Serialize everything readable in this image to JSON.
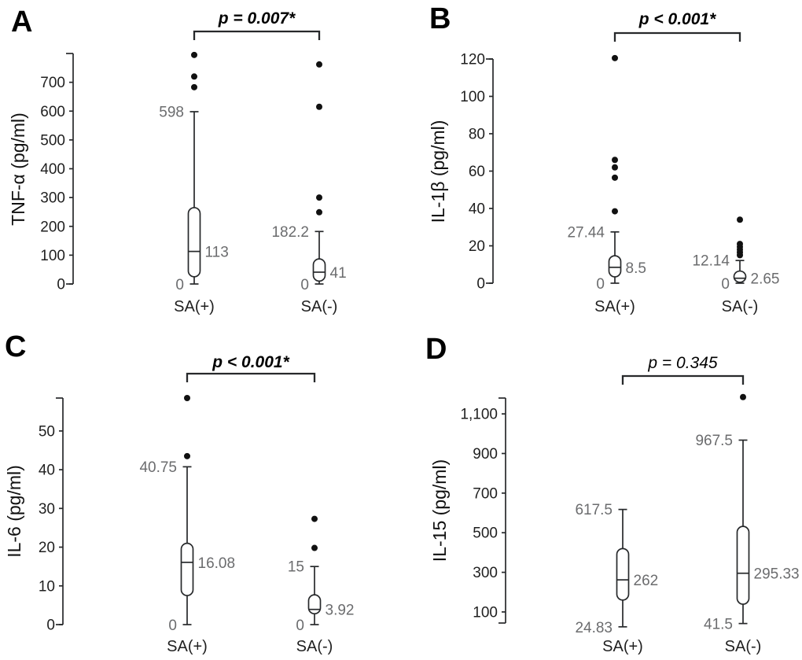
{
  "figure": {
    "background": "#ffffff",
    "line_color": "#27292b",
    "annotation_color": "#6b6c6e",
    "text_color": "#1f1f1f"
  },
  "chart_data": [
    {
      "type": "box",
      "panel_label": "A",
      "p_value": "p = 0.007*",
      "significant": true,
      "ylabel": "TNF-α (pg/ml)",
      "axis_range": [
        0,
        800
      ],
      "y_ticks": [
        0,
        100,
        200,
        300,
        400,
        500,
        600,
        700
      ],
      "y_tick_labels": [
        "0",
        "100",
        "200",
        "300",
        "400",
        "500",
        "600",
        "700"
      ],
      "categories": [
        "SA(+)",
        "SA(-)"
      ],
      "series": [
        {
          "name": "SA(+)",
          "whisker_low": 0,
          "q1": 25,
          "median": 113,
          "q3": 265,
          "whisker_high": 598,
          "outliers": [
            795,
            720,
            683
          ],
          "labels": {
            "whisker_high": "598",
            "median": "113",
            "whisker_low": "0"
          }
        },
        {
          "name": "SA(-)",
          "whisker_low": 0,
          "q1": 10,
          "median": 41,
          "q3": 87,
          "whisker_high": 182.2,
          "outliers": [
            762,
            615,
            300,
            249
          ],
          "labels": {
            "whisker_high": "182.2",
            "median": "41",
            "whisker_low": "0"
          }
        }
      ]
    },
    {
      "type": "box",
      "panel_label": "B",
      "p_value": "p < 0.001*",
      "significant": true,
      "ylabel": "IL-1β (pg/ml)",
      "axis_range": [
        0,
        120
      ],
      "y_ticks": [
        0,
        20,
        40,
        60,
        80,
        100,
        120
      ],
      "y_tick_labels": [
        "0",
        "20",
        "40",
        "60",
        "80",
        "100",
        "120"
      ],
      "categories": [
        "SA(+)",
        "SA(-)"
      ],
      "series": [
        {
          "name": "SA(+)",
          "whisker_low": 0,
          "q1": 3.4,
          "median": 8.5,
          "q3": 14.7,
          "whisker_high": 27.44,
          "outliers": [
            120.5,
            66,
            62,
            56.5,
            38.5
          ],
          "labels": {
            "whisker_high": "27.44",
            "median": "8.5",
            "whisker_low": "0"
          }
        },
        {
          "name": "SA(-)",
          "whisker_low": 0,
          "q1": 0.5,
          "median": 2.65,
          "q3": 6.5,
          "whisker_high": 12.14,
          "outliers": [
            34,
            21,
            19.5,
            18,
            16.5,
            15
          ],
          "labels": {
            "whisker_high": "12.14",
            "median": "2.65",
            "whisker_low": "0"
          }
        }
      ]
    },
    {
      "type": "box",
      "panel_label": "C",
      "p_value": "p < 0.001*",
      "significant": true,
      "ylabel": "IL-6 (pg/ml)",
      "axis_range": [
        0,
        58.5
      ],
      "y_ticks": [
        0,
        10,
        20,
        30,
        40,
        50
      ],
      "y_tick_labels": [
        "0",
        "10",
        "20",
        "30",
        "40",
        "50"
      ],
      "categories": [
        "SA(+)",
        "SA(-)"
      ],
      "series": [
        {
          "name": "SA(+)",
          "whisker_low": 0,
          "q1": 7.5,
          "median": 16.08,
          "q3": 21,
          "whisker_high": 40.75,
          "outliers": [
            58.5,
            43.5
          ],
          "labels": {
            "whisker_high": "40.75",
            "median": "16.08",
            "whisker_low": "0"
          }
        },
        {
          "name": "SA(-)",
          "whisker_low": 0,
          "q1": 2.8,
          "median": 3.92,
          "q3": 7.7,
          "whisker_high": 15,
          "outliers": [
            27.3,
            19.8
          ],
          "labels": {
            "whisker_high": "15",
            "median": "3.92",
            "whisker_low": "0"
          }
        }
      ]
    },
    {
      "type": "box",
      "panel_label": "D",
      "p_value": "p = 0.345",
      "significant": false,
      "ylabel": "IL-15 (pg/ml)",
      "axis_range": [
        44,
        1180
      ],
      "y_ticks": [
        100,
        300,
        500,
        700,
        900,
        1100
      ],
      "y_tick_labels": [
        "100",
        "300",
        "500",
        "700",
        "900",
        "1,100"
      ],
      "categories": [
        "SA(+)",
        "SA(-)"
      ],
      "series": [
        {
          "name": "SA(+)",
          "whisker_low": 24.83,
          "q1": 160,
          "median": 262,
          "q3": 420,
          "whisker_high": 617.5,
          "outliers": [],
          "labels": {
            "whisker_high": "617.5",
            "median": "262",
            "whisker_low": "24.83"
          }
        },
        {
          "name": "SA(-)",
          "whisker_low": 41.5,
          "q1": 139,
          "median": 295.33,
          "q3": 532,
          "whisker_high": 967.5,
          "outliers": [
            1185
          ],
          "labels": {
            "whisker_high": "967.5",
            "median": "295.33",
            "whisker_low": "41.5"
          }
        }
      ]
    }
  ]
}
